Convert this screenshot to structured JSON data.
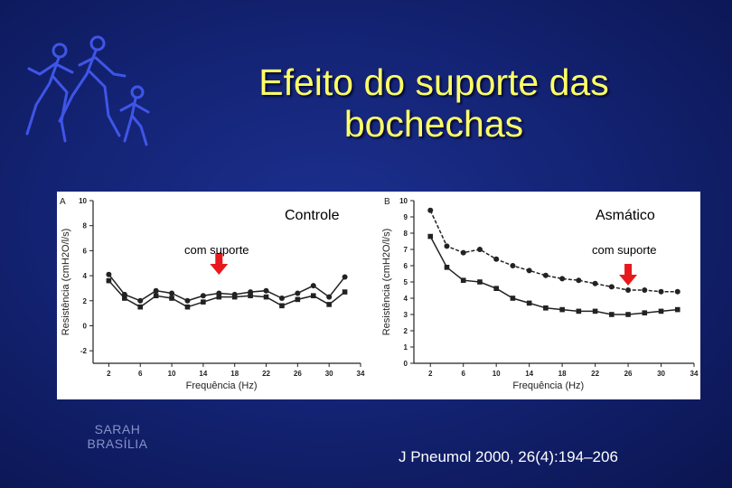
{
  "slide": {
    "title_line1": "Efeito do suporte das",
    "title_line2": "bochechas",
    "footer_left_line1": "SARAH",
    "footer_left_line2": "BRASÍLIA",
    "citation": "J Pneumol 2000, 26(4):194–206",
    "logo_icon": "running-family-icon"
  },
  "colors": {
    "title": "#ffff66",
    "background": "#142476",
    "arrow": "#e8191c",
    "series": "#222222"
  },
  "chart_data": [
    {
      "type": "line",
      "panel": "A",
      "title": "Controle",
      "annotation": "com suporte",
      "annotation_x": 16,
      "xlabel": "Frequência (Hz)",
      "ylabel": "Resistência (cmH2O/l/s)",
      "x": [
        2,
        4,
        6,
        8,
        10,
        12,
        14,
        16,
        18,
        20,
        22,
        24,
        26,
        28,
        30,
        32
      ],
      "xticks": [
        2,
        6,
        10,
        14,
        18,
        22,
        26,
        30,
        34
      ],
      "yticks": [
        -2,
        0,
        2,
        4,
        6,
        8,
        10
      ],
      "xlim": [
        0,
        34
      ],
      "ylim": [
        -3,
        10
      ],
      "grid": false,
      "series": [
        {
          "marker": "circle",
          "values": [
            4.1,
            2.5,
            2.0,
            2.8,
            2.6,
            2.0,
            2.4,
            2.6,
            2.5,
            2.7,
            2.8,
            2.2,
            2.6,
            3.2,
            2.3,
            3.9
          ]
        },
        {
          "marker": "square",
          "values": [
            3.6,
            2.2,
            1.5,
            2.4,
            2.2,
            1.5,
            1.9,
            2.3,
            2.3,
            2.4,
            2.3,
            1.6,
            2.1,
            2.4,
            1.7,
            2.7
          ]
        }
      ]
    },
    {
      "type": "line",
      "panel": "B",
      "title": "Asmático",
      "annotation": "com suporte",
      "annotation_x": 26,
      "xlabel": "Frequência (Hz)",
      "ylabel": "Resistência (cmH2O/l/s)",
      "x": [
        2,
        4,
        6,
        8,
        10,
        12,
        14,
        16,
        18,
        20,
        22,
        24,
        26,
        28,
        30,
        32
      ],
      "xticks": [
        2,
        6,
        10,
        14,
        18,
        22,
        26,
        30,
        34
      ],
      "yticks": [
        0,
        1,
        2,
        3,
        4,
        5,
        6,
        7,
        8,
        9,
        10
      ],
      "xlim": [
        0,
        34
      ],
      "ylim": [
        0,
        10
      ],
      "grid": false,
      "series": [
        {
          "marker": "circle",
          "values": [
            9.4,
            7.2,
            6.8,
            7.0,
            6.4,
            6.0,
            5.7,
            5.4,
            5.2,
            5.1,
            4.9,
            4.7,
            4.5,
            4.5,
            4.4,
            4.4
          ]
        },
        {
          "marker": "square",
          "values": [
            7.8,
            5.9,
            5.1,
            5.0,
            4.6,
            4.0,
            3.7,
            3.4,
            3.3,
            3.2,
            3.2,
            3.0,
            3.0,
            3.1,
            3.2,
            3.3
          ]
        }
      ]
    }
  ]
}
